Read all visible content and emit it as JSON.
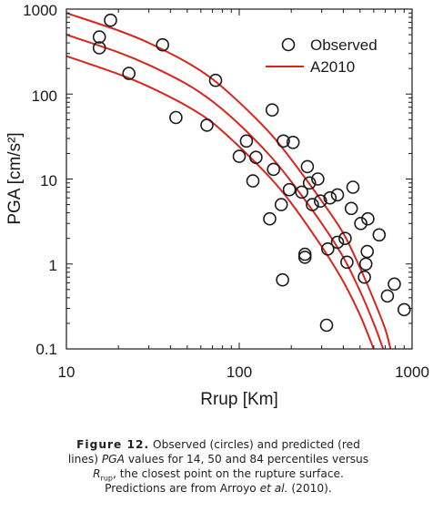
{
  "chart_data": {
    "type": "scatter",
    "x_scale": "log",
    "y_scale": "log",
    "xlim": [
      10,
      1000
    ],
    "ylim": [
      0.1,
      1000
    ],
    "xlabel": "Rrup [Km]",
    "ylabel": "PGA [cm/s²]",
    "x_ticks": [
      "10",
      "100",
      "1000"
    ],
    "y_ticks": [
      "0.1",
      "1",
      "10",
      "100",
      "1000"
    ],
    "grid": false,
    "legend_position": "top-right",
    "colors": {
      "observed": "#1a1a1a",
      "model": "#d8261c"
    },
    "series": [
      {
        "name": "Observed",
        "kind": "scatter",
        "points": [
          [
            18,
            740
          ],
          [
            15.5,
            470
          ],
          [
            15.5,
            350
          ],
          [
            23,
            175
          ],
          [
            36,
            380
          ],
          [
            43,
            53
          ],
          [
            65,
            43
          ],
          [
            73,
            145
          ],
          [
            100,
            18.5
          ],
          [
            110,
            28
          ],
          [
            120,
            9.5
          ],
          [
            125,
            18
          ],
          [
            150,
            3.4
          ],
          [
            155,
            65
          ],
          [
            158,
            13
          ],
          [
            175,
            5
          ],
          [
            178,
            0.65
          ],
          [
            180,
            28
          ],
          [
            195,
            7.5
          ],
          [
            205,
            27
          ],
          [
            230,
            7
          ],
          [
            240,
            1.3
          ],
          [
            240,
            1.2
          ],
          [
            248,
            14
          ],
          [
            255,
            9
          ],
          [
            265,
            5
          ],
          [
            285,
            10
          ],
          [
            295,
            5.5
          ],
          [
            320,
            0.19
          ],
          [
            325,
            1.5
          ],
          [
            335,
            6
          ],
          [
            370,
            6.5
          ],
          [
            370,
            1.8
          ],
          [
            410,
            2
          ],
          [
            420,
            1.05
          ],
          [
            445,
            4.5
          ],
          [
            455,
            8
          ],
          [
            505,
            3
          ],
          [
            530,
            0.7
          ],
          [
            540,
            1
          ],
          [
            550,
            1.4
          ],
          [
            555,
            3.4
          ],
          [
            645,
            2.2
          ],
          [
            720,
            0.42
          ],
          [
            790,
            0.58
          ],
          [
            900,
            0.29
          ]
        ]
      },
      {
        "name": "A2010",
        "kind": "line",
        "curves": [
          {
            "percentile": 84,
            "points": [
              [
                10,
                900
              ],
              [
                20,
                560
              ],
              [
                30,
                400
              ],
              [
                50,
                235
              ],
              [
                70,
                150
              ],
              [
                100,
                80
              ],
              [
                150,
                35
              ],
              [
                200,
                17
              ],
              [
                300,
                5.5
              ],
              [
                400,
                2.3
              ],
              [
                500,
                0.9
              ],
              [
                600,
                0.38
              ],
              [
                700,
                0.17
              ],
              [
                750,
                0.1
              ]
            ]
          },
          {
            "percentile": 50,
            "points": [
              [
                10,
                500
              ],
              [
                20,
                310
              ],
              [
                30,
                220
              ],
              [
                50,
                130
              ],
              [
                70,
                82
              ],
              [
                100,
                44
              ],
              [
                150,
                19
              ],
              [
                200,
                9.3
              ],
              [
                300,
                3
              ],
              [
                400,
                1.2
              ],
              [
                500,
                0.48
              ],
              [
                600,
                0.2
              ],
              [
                680,
                0.1
              ]
            ]
          },
          {
            "percentile": 14,
            "points": [
              [
                10,
                280
              ],
              [
                20,
                172
              ],
              [
                30,
                122
              ],
              [
                50,
                72
              ],
              [
                70,
                46
              ],
              [
                100,
                24
              ],
              [
                150,
                10.5
              ],
              [
                200,
                5.2
              ],
              [
                300,
                1.6
              ],
              [
                400,
                0.62
              ],
              [
                500,
                0.25
              ],
              [
                600,
                0.1
              ]
            ]
          }
        ]
      }
    ]
  },
  "caption": {
    "figure_label": "Figure 12.",
    "text_1": " Observed (circles) and predicted (red lines) ",
    "pga_italic": "PGA",
    "text_2": " values for 14, 50 and 84 percentiles versus ",
    "r_italic": "R",
    "rup_sub": "rup",
    "text_3": ", the closest point on the rupture surface. Predictions are from Arroyo ",
    "etal_italic": "et al.",
    "text_4": " (2010)."
  }
}
